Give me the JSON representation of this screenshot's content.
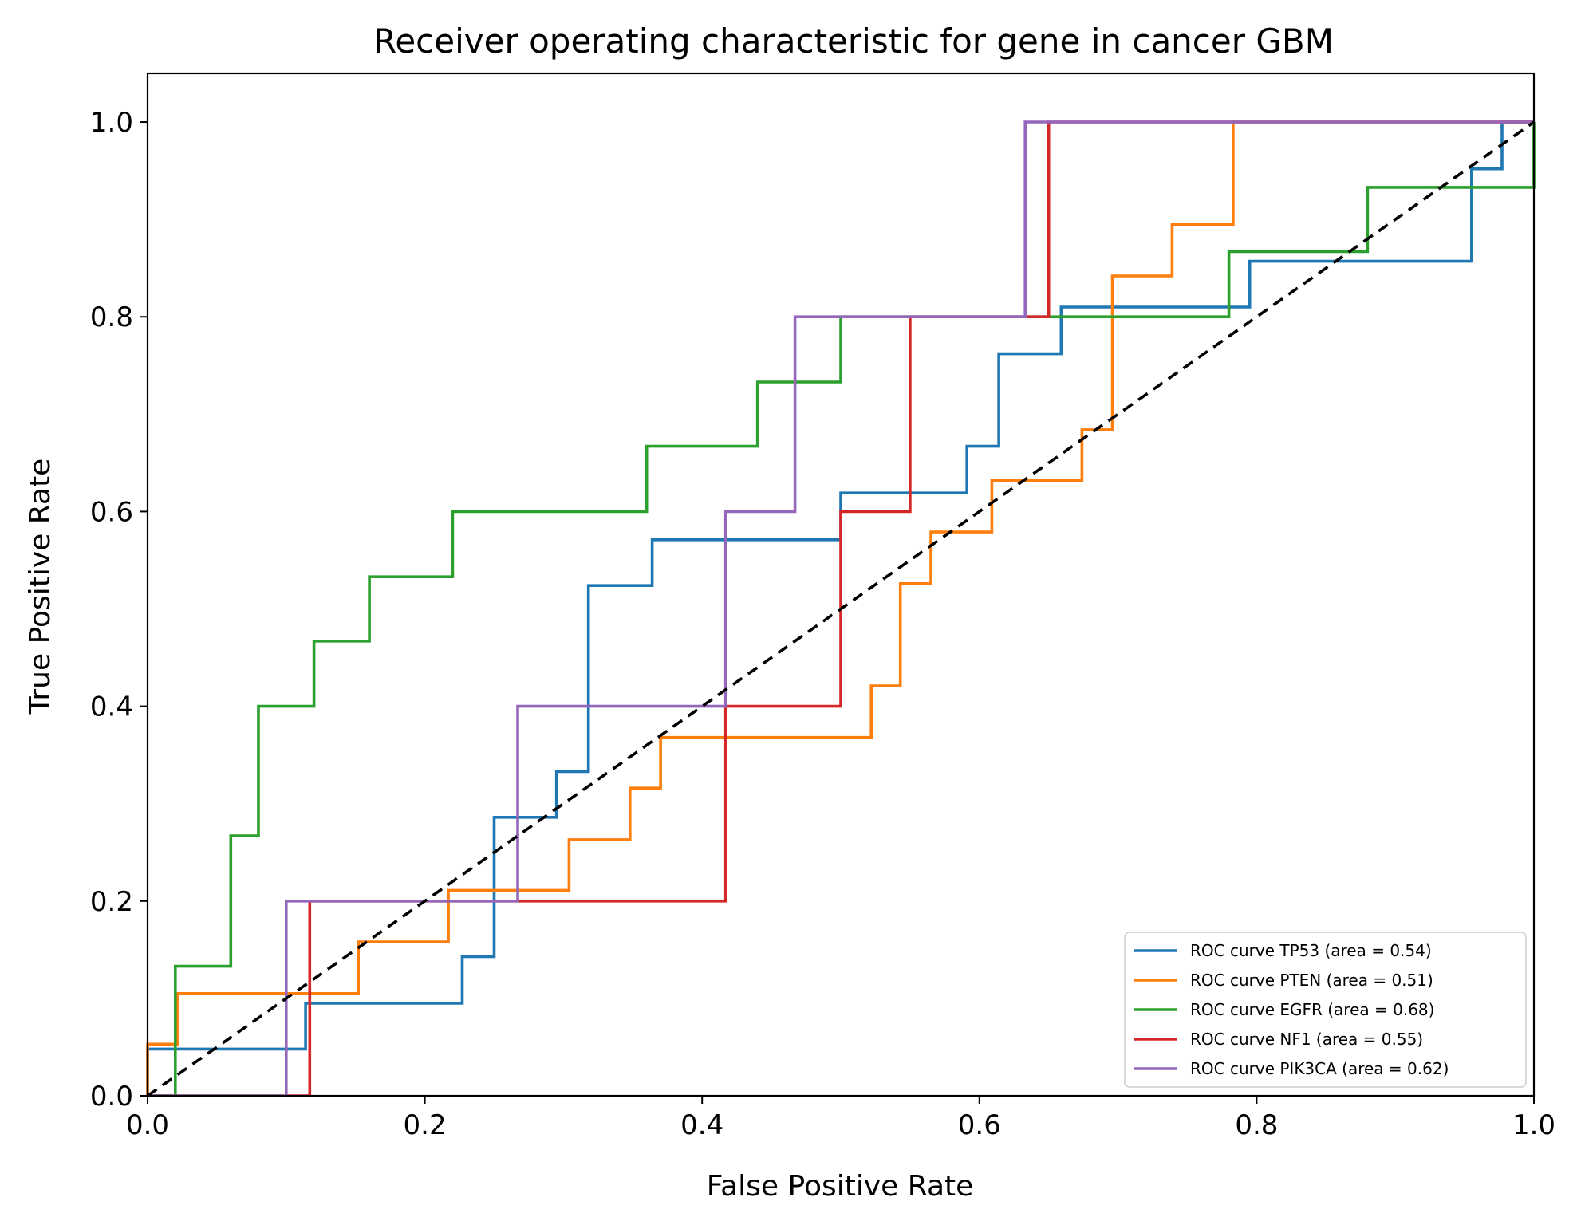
{
  "chart_data": {
    "type": "line",
    "title": "Receiver operating characteristic for gene in cancer GBM",
    "xlabel": "False Positive Rate",
    "ylabel": "True Positive Rate",
    "xlim": [
      0.0,
      1.0
    ],
    "ylim": [
      0.0,
      1.05
    ],
    "xticks": [
      "0.0",
      "0.2",
      "0.4",
      "0.6",
      "0.8",
      "1.0"
    ],
    "yticks": [
      "0.0",
      "0.2",
      "0.4",
      "0.6",
      "0.8",
      "1.0"
    ],
    "grid": false,
    "legend_position": "lower-right",
    "series": [
      {
        "name": "ROC curve TP53 (area = 0.54)",
        "color": "#1f77b4",
        "points": [
          [
            0,
            0
          ],
          [
            0,
            0.048
          ],
          [
            0.114,
            0.048
          ],
          [
            0.114,
            0.095
          ],
          [
            0.227,
            0.095
          ],
          [
            0.227,
            0.143
          ],
          [
            0.25,
            0.143
          ],
          [
            0.25,
            0.286
          ],
          [
            0.295,
            0.286
          ],
          [
            0.295,
            0.333
          ],
          [
            0.318,
            0.333
          ],
          [
            0.318,
            0.524
          ],
          [
            0.364,
            0.524
          ],
          [
            0.364,
            0.571
          ],
          [
            0.5,
            0.571
          ],
          [
            0.5,
            0.619
          ],
          [
            0.591,
            0.619
          ],
          [
            0.591,
            0.667
          ],
          [
            0.614,
            0.667
          ],
          [
            0.614,
            0.762
          ],
          [
            0.659,
            0.762
          ],
          [
            0.659,
            0.81
          ],
          [
            0.795,
            0.81
          ],
          [
            0.795,
            0.857
          ],
          [
            0.955,
            0.857
          ],
          [
            0.955,
            0.952
          ],
          [
            0.977,
            0.952
          ],
          [
            0.977,
            1.0
          ],
          [
            1.0,
            1.0
          ]
        ]
      },
      {
        "name": "ROC curve PTEN (area = 0.51)",
        "color": "#ff7f0e",
        "points": [
          [
            0,
            0
          ],
          [
            0,
            0.053
          ],
          [
            0.022,
            0.053
          ],
          [
            0.022,
            0.105
          ],
          [
            0.152,
            0.105
          ],
          [
            0.152,
            0.158
          ],
          [
            0.217,
            0.158
          ],
          [
            0.217,
            0.211
          ],
          [
            0.304,
            0.211
          ],
          [
            0.304,
            0.263
          ],
          [
            0.348,
            0.263
          ],
          [
            0.348,
            0.316
          ],
          [
            0.37,
            0.316
          ],
          [
            0.37,
            0.368
          ],
          [
            0.522,
            0.368
          ],
          [
            0.522,
            0.421
          ],
          [
            0.543,
            0.421
          ],
          [
            0.543,
            0.526
          ],
          [
            0.565,
            0.526
          ],
          [
            0.565,
            0.579
          ],
          [
            0.609,
            0.579
          ],
          [
            0.609,
            0.632
          ],
          [
            0.674,
            0.632
          ],
          [
            0.674,
            0.684
          ],
          [
            0.696,
            0.684
          ],
          [
            0.696,
            0.842
          ],
          [
            0.739,
            0.842
          ],
          [
            0.739,
            0.895
          ],
          [
            0.783,
            0.895
          ],
          [
            0.783,
            1.0
          ],
          [
            1.0,
            1.0
          ]
        ]
      },
      {
        "name": "ROC curve EGFR (area = 0.68)",
        "color": "#2ca02c",
        "points": [
          [
            0,
            0
          ],
          [
            0.02,
            0
          ],
          [
            0.02,
            0.133
          ],
          [
            0.06,
            0.133
          ],
          [
            0.06,
            0.267
          ],
          [
            0.08,
            0.267
          ],
          [
            0.08,
            0.4
          ],
          [
            0.12,
            0.4
          ],
          [
            0.12,
            0.467
          ],
          [
            0.16,
            0.467
          ],
          [
            0.16,
            0.533
          ],
          [
            0.22,
            0.533
          ],
          [
            0.22,
            0.6
          ],
          [
            0.36,
            0.6
          ],
          [
            0.36,
            0.667
          ],
          [
            0.44,
            0.667
          ],
          [
            0.44,
            0.733
          ],
          [
            0.5,
            0.733
          ],
          [
            0.5,
            0.8
          ],
          [
            0.78,
            0.8
          ],
          [
            0.78,
            0.867
          ],
          [
            0.88,
            0.867
          ],
          [
            0.88,
            0.933
          ],
          [
            1.0,
            0.933
          ],
          [
            1.0,
            1.0
          ]
        ]
      },
      {
        "name": "ROC curve NF1 (area = 0.55)",
        "color": "#d62728",
        "points": [
          [
            0,
            0
          ],
          [
            0.117,
            0
          ],
          [
            0.117,
            0.2
          ],
          [
            0.417,
            0.2
          ],
          [
            0.417,
            0.4
          ],
          [
            0.5,
            0.4
          ],
          [
            0.5,
            0.6
          ],
          [
            0.55,
            0.6
          ],
          [
            0.55,
            0.8
          ],
          [
            0.65,
            0.8
          ],
          [
            0.65,
            1.0
          ],
          [
            1.0,
            1.0
          ]
        ]
      },
      {
        "name": "ROC curve PIK3CA (area = 0.62)",
        "color": "#9467bd",
        "points": [
          [
            0,
            0
          ],
          [
            0.1,
            0
          ],
          [
            0.1,
            0.2
          ],
          [
            0.267,
            0.2
          ],
          [
            0.267,
            0.4
          ],
          [
            0.417,
            0.4
          ],
          [
            0.417,
            0.6
          ],
          [
            0.467,
            0.6
          ],
          [
            0.467,
            0.8
          ],
          [
            0.633,
            0.8
          ],
          [
            0.633,
            1.0
          ],
          [
            1.0,
            1.0
          ]
        ]
      }
    ],
    "reference_line": {
      "style": "dashed",
      "color": "#000000",
      "points": [
        [
          0,
          0
        ],
        [
          1,
          1
        ]
      ]
    }
  }
}
